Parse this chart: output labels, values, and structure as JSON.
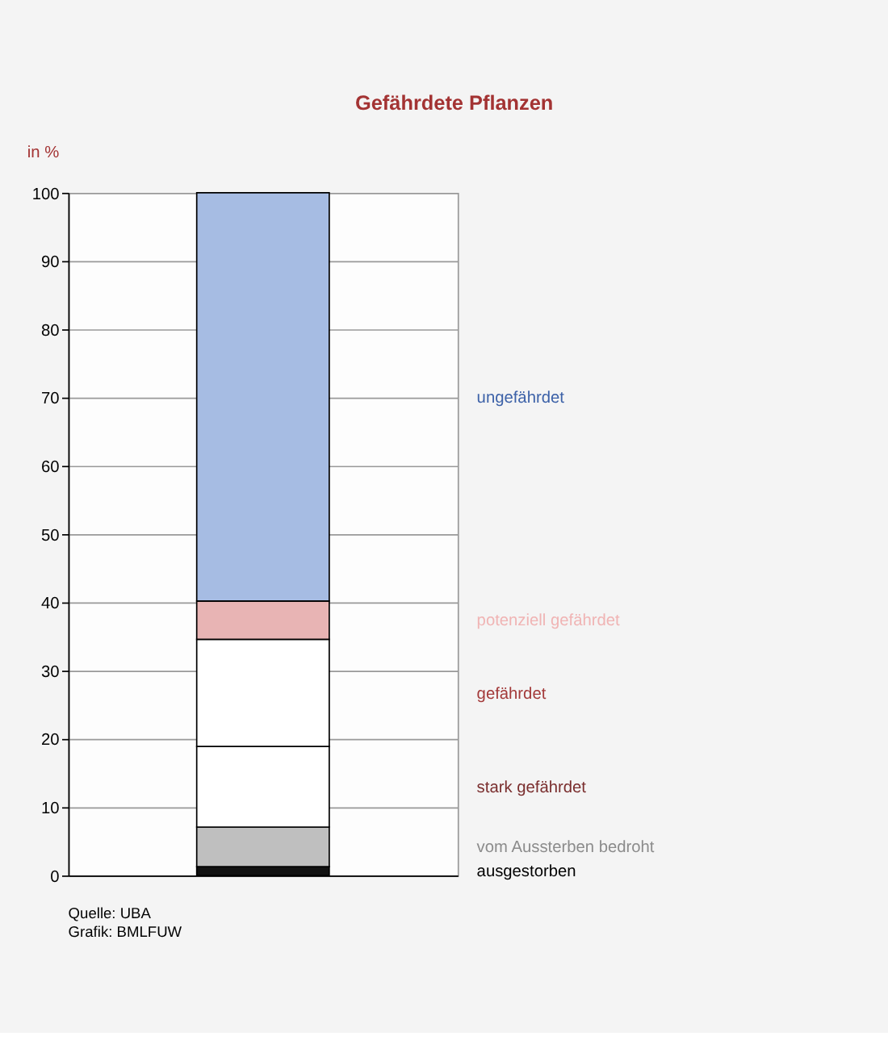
{
  "chart_data": {
    "type": "bar",
    "title": "Gefährdete Pflanzen",
    "ylabel": "in %",
    "categories": [
      null
    ],
    "stacked": true,
    "series": [
      {
        "name": "ausgestorben",
        "color": "#111111",
        "values": [
          1.3
        ]
      },
      {
        "name": "vom Aussterben bedroht",
        "color": "#bfbfbf",
        "values": [
          5.8
        ]
      },
      {
        "name": "stark gefährdet",
        "color": "#ffffff",
        "values": [
          11.8
        ]
      },
      {
        "name": "gefährdet",
        "color": "#ffffff",
        "values": [
          15.7
        ]
      },
      {
        "name": "potenziell gefährdet",
        "color": "#e8b4b4",
        "values": [
          5.6
        ]
      },
      {
        "name": "ungefährdet",
        "color": "#a6bce3",
        "values": [
          59.8
        ]
      }
    ],
    "ylim": [
      0,
      100
    ],
    "yticks": [
      0,
      10,
      20,
      30,
      40,
      50,
      60,
      70,
      80,
      90,
      100
    ],
    "grid": "y",
    "legend": "right",
    "annotations": [
      "Quelle: UBA",
      "Grafik: BMLFUW"
    ]
  }
}
